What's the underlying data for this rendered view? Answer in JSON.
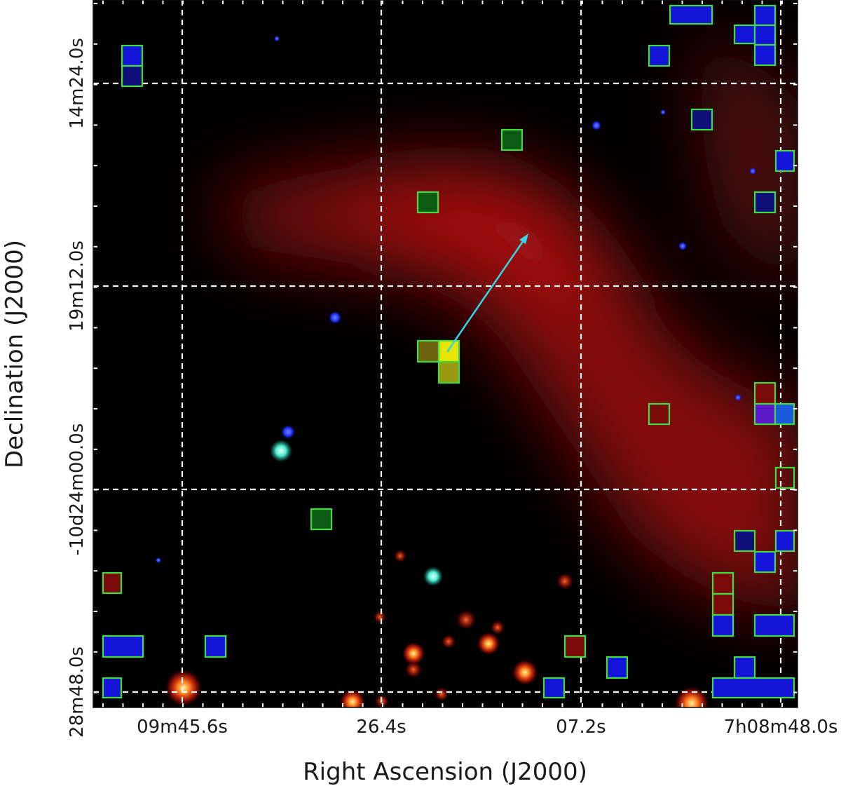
{
  "figure": {
    "x_axis_label": "Right Ascension (J2000)",
    "y_axis_label": "Declination (J2000)",
    "x_tick_labels": [
      "09m45.6s",
      "26.4s",
      "07.2s",
      "7h08m48.0s"
    ],
    "y_tick_labels": [
      "14m24.0s",
      "19m12.0s",
      "-10d24m00.0s",
      "28m48.0s"
    ]
  },
  "colors": {
    "background": "#000000",
    "nebula": "#c81414",
    "grid": "#ffffff",
    "box_outline": "#3fdd3f",
    "pixel_blue": "#1414d8",
    "pixel_green": "#0c5a14",
    "pixel_red": "#7a0a0a",
    "arrow": "#33d6e6"
  }
}
